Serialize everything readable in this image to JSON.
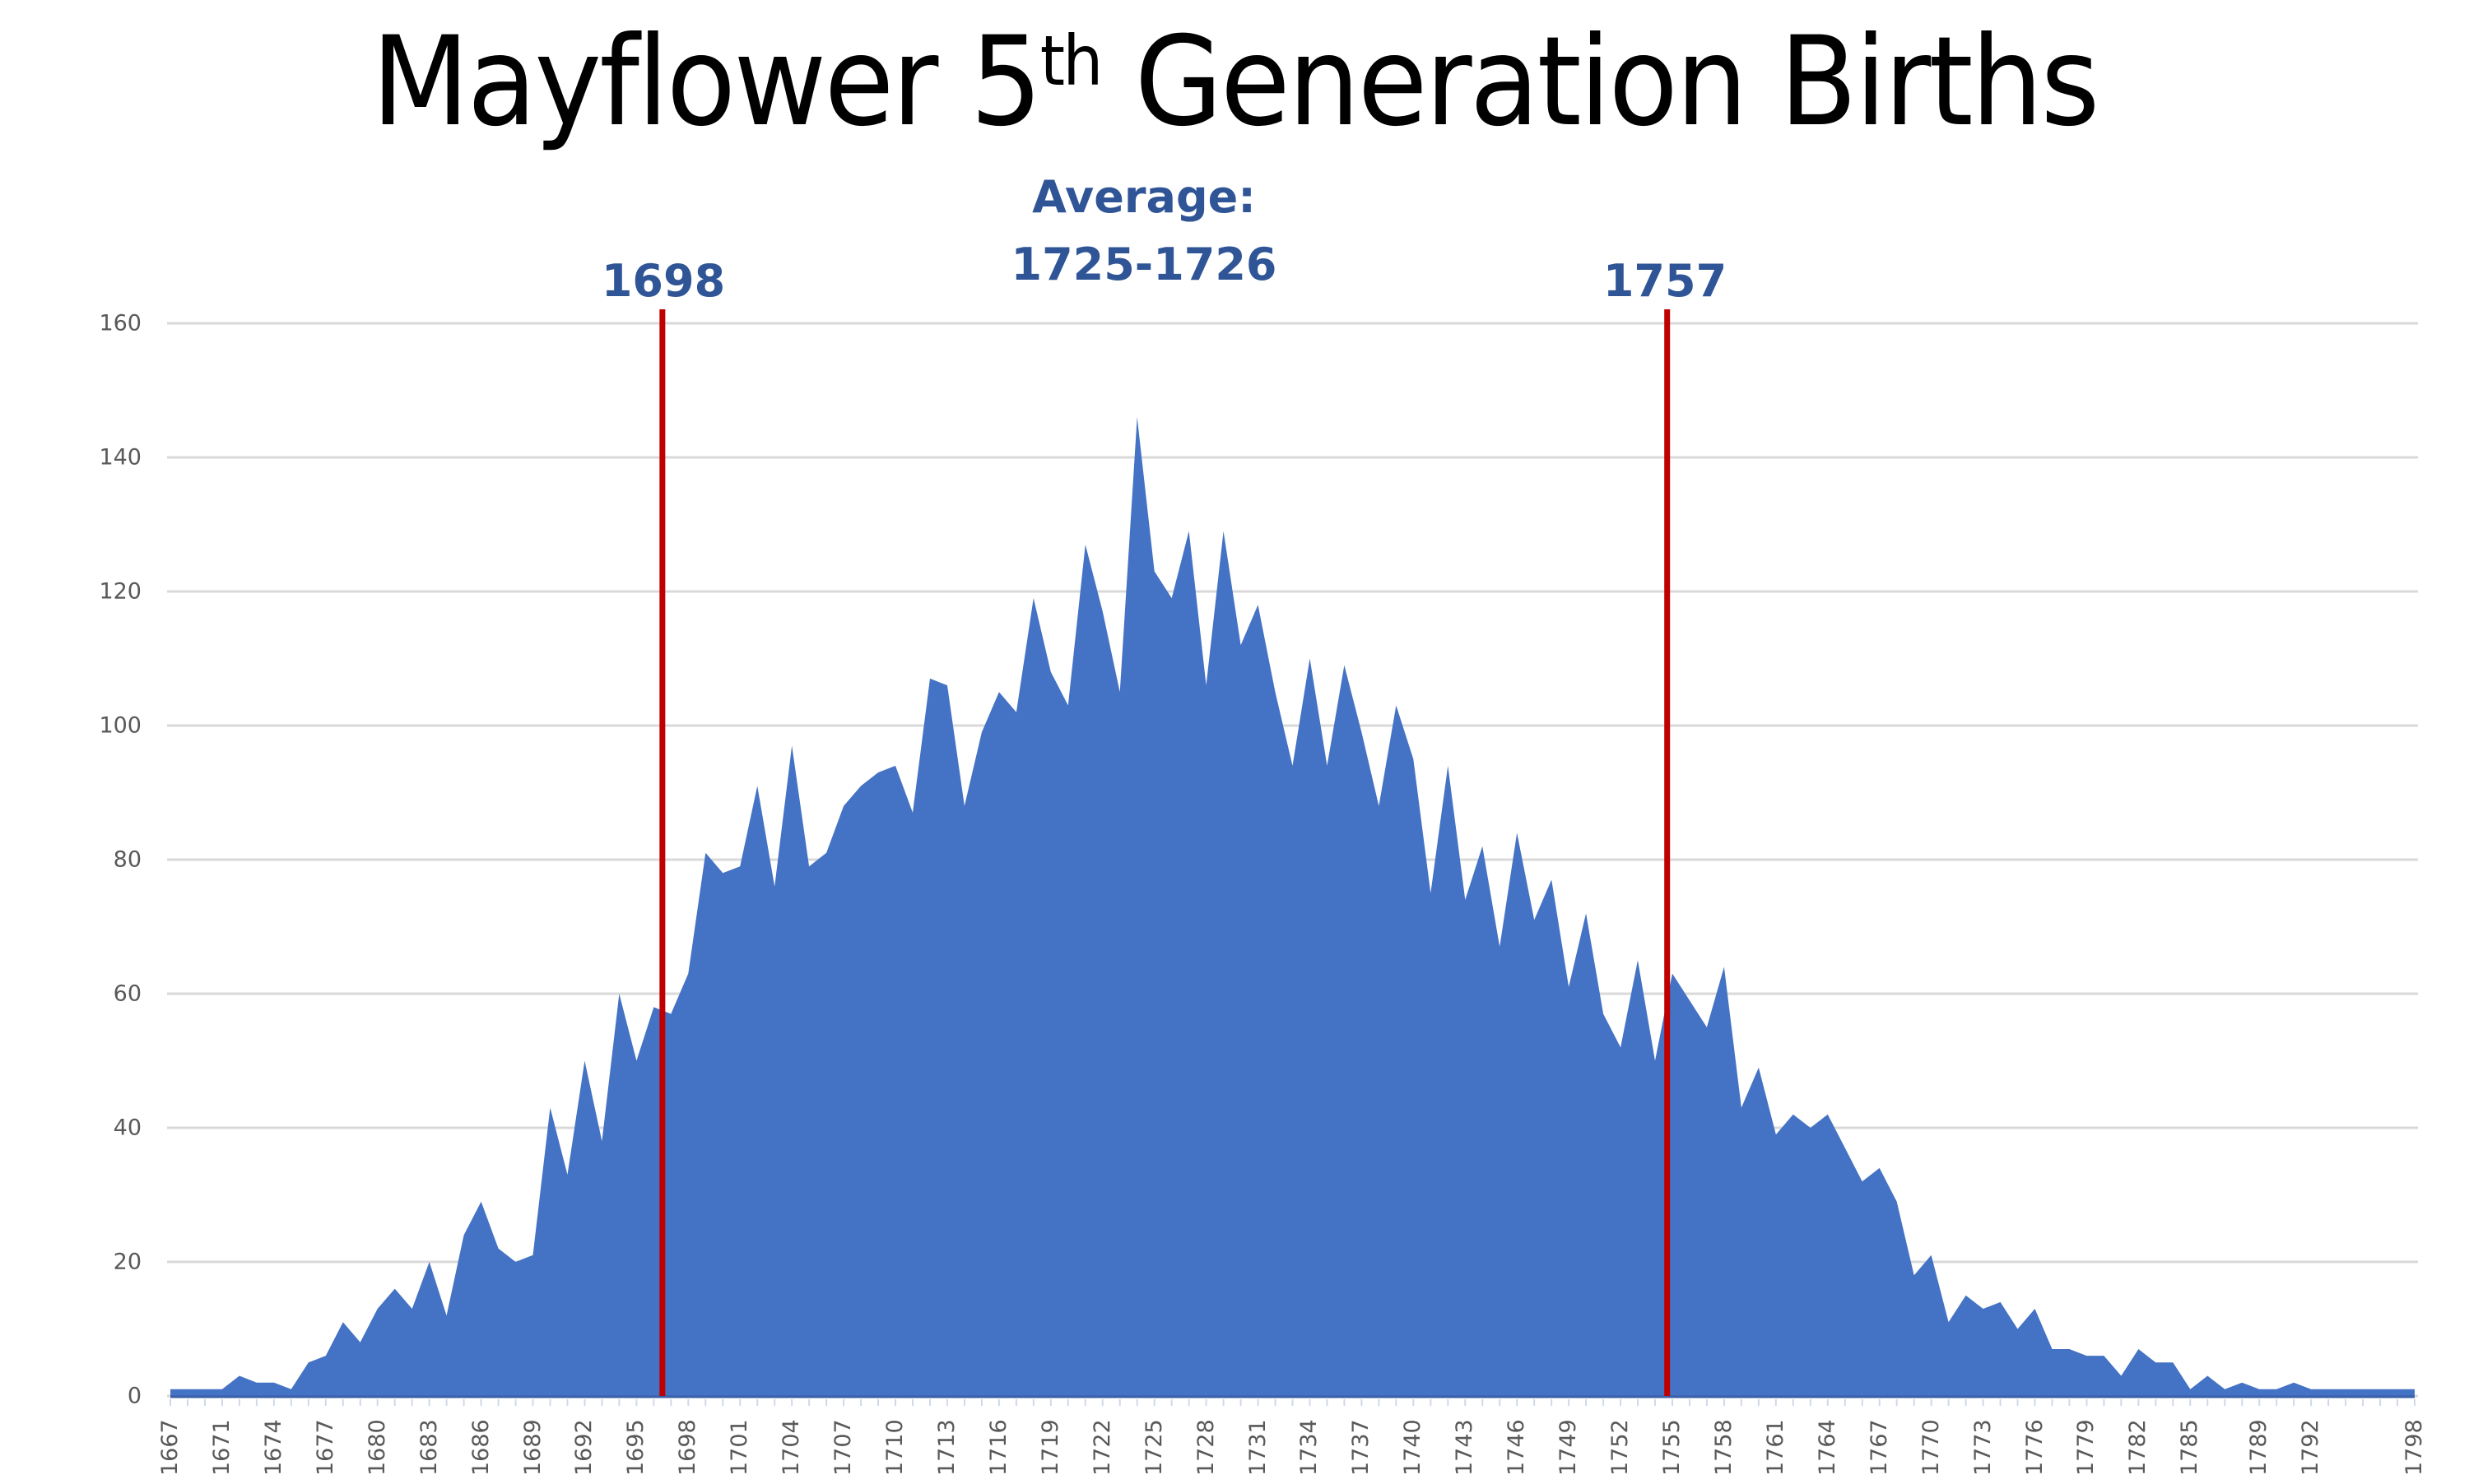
{
  "title": {
    "main_a": "Mayflower 5",
    "sup": "th",
    "main_b": " Generation Births"
  },
  "annotations": {
    "average_label": "Average:",
    "average_range": "1725-1726",
    "left_line_label": "1698",
    "right_line_label": "1757"
  },
  "colors": {
    "area": "#4472C4",
    "ref_line": "#C00000",
    "annotation": "#2F5597",
    "grid": "#D9D9D9",
    "tick_text": "#595959"
  },
  "chart_data": {
    "type": "area",
    "title": "Mayflower 5th Generation Births",
    "xlabel": "",
    "ylabel": "",
    "ylim": [
      0,
      160
    ],
    "yticks": [
      0,
      20,
      40,
      60,
      80,
      100,
      120,
      140,
      160
    ],
    "grid": true,
    "legend": "none",
    "xtick_labels": [
      "1667",
      "1671",
      "1674",
      "1677",
      "1680",
      "1683",
      "1686",
      "1689",
      "1692",
      "1695",
      "1698",
      "1701",
      "1704",
      "1707",
      "1710",
      "1713",
      "1716",
      "1719",
      "1722",
      "1725",
      "1728",
      "1731",
      "1734",
      "1737",
      "1740",
      "1743",
      "1746",
      "1749",
      "1752",
      "1755",
      "1758",
      "1761",
      "1764",
      "1767",
      "1770",
      "1773",
      "1776",
      "1779",
      "1782",
      "1785",
      "1789",
      "1792",
      "1798"
    ],
    "categories": [
      1667,
      1669,
      1670,
      1671,
      1672,
      1673,
      1674,
      1675,
      1676,
      1677,
      1678,
      1679,
      1680,
      1681,
      1682,
      1683,
      1684,
      1685,
      1686,
      1687,
      1688,
      1689,
      1690,
      1691,
      1692,
      1693,
      1694,
      1695,
      1696,
      1697,
      1698,
      1699,
      1700,
      1701,
      1702,
      1703,
      1704,
      1705,
      1706,
      1707,
      1708,
      1709,
      1710,
      1711,
      1712,
      1713,
      1714,
      1715,
      1716,
      1717,
      1718,
      1719,
      1720,
      1721,
      1722,
      1723,
      1724,
      1725,
      1726,
      1727,
      1728,
      1729,
      1730,
      1731,
      1732,
      1733,
      1734,
      1735,
      1736,
      1737,
      1738,
      1739,
      1740,
      1741,
      1742,
      1743,
      1744,
      1745,
      1746,
      1747,
      1748,
      1749,
      1750,
      1751,
      1752,
      1753,
      1754,
      1755,
      1756,
      1757,
      1758,
      1759,
      1760,
      1761,
      1762,
      1763,
      1764,
      1765,
      1766,
      1767,
      1768,
      1769,
      1770,
      1771,
      1772,
      1773,
      1774,
      1775,
      1776,
      1777,
      1778,
      1779,
      1780,
      1781,
      1782,
      1783,
      1784,
      1785,
      1786,
      1787,
      1788,
      1789,
      1790,
      1791,
      1792,
      1793,
      1794,
      1795,
      1796,
      1797,
      1798
    ],
    "series": [
      {
        "name": "Births",
        "values": [
          1,
          1,
          1,
          1,
          3,
          2,
          2,
          1,
          5,
          6,
          11,
          8,
          13,
          16,
          13,
          20,
          12,
          24,
          29,
          22,
          20,
          21,
          43,
          33,
          50,
          38,
          60,
          50,
          58,
          57,
          63,
          81,
          78,
          79,
          91,
          76,
          97,
          79,
          81,
          88,
          91,
          93,
          94,
          87,
          107,
          106,
          88,
          99,
          105,
          102,
          119,
          108,
          103,
          127,
          117,
          105,
          146,
          123,
          119,
          129,
          106,
          129,
          112,
          118,
          105,
          94,
          110,
          94,
          109,
          99,
          88,
          103,
          95,
          75,
          94,
          74,
          82,
          67,
          84,
          71,
          77,
          61,
          72,
          57,
          52,
          65,
          50,
          63,
          59,
          55,
          64,
          43,
          49,
          39,
          42,
          40,
          42,
          37,
          32,
          34,
          29,
          18,
          21,
          11,
          15,
          13,
          14,
          10,
          13,
          7,
          7,
          6,
          6,
          3,
          7,
          5,
          5,
          1,
          3,
          1,
          2,
          1,
          1,
          2,
          1,
          1,
          1,
          1,
          1,
          1,
          1
        ]
      }
    ],
    "reference_lines": [
      {
        "label": "1698",
        "position_index": 28.5
      },
      {
        "label": "1757",
        "position_index": 86.7
      }
    ],
    "annotations": [
      "Average:",
      "1725-1726"
    ]
  }
}
